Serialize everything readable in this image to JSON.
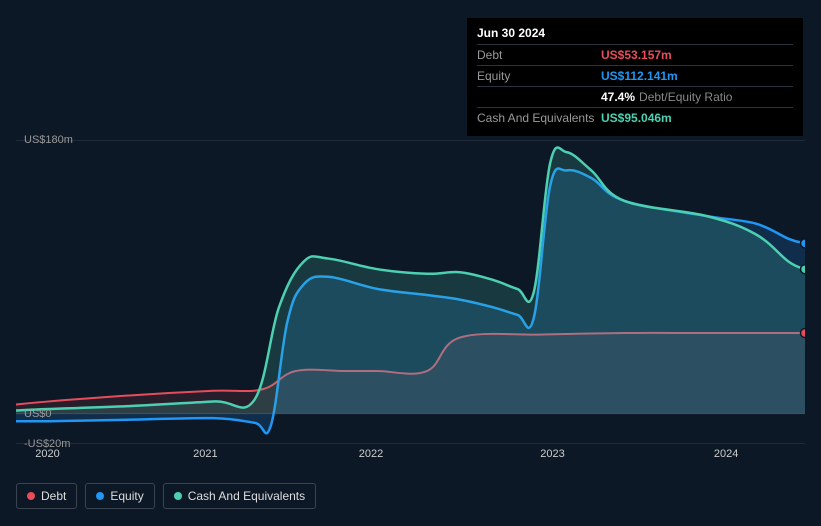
{
  "tooltip": {
    "date": "Jun 30 2024",
    "debt_label": "Debt",
    "debt_value": "US$53.157m",
    "equity_label": "Equity",
    "equity_value": "US$112.141m",
    "ratio_pct": "47.4%",
    "ratio_label": "Debt/Equity Ratio",
    "cash_label": "Cash And Equivalents",
    "cash_value": "US$95.046m"
  },
  "chart": {
    "type": "area",
    "background_color": "#0d1826",
    "grid_color": "#333d4a",
    "y_ticks": [
      {
        "pos": 0,
        "label": "US$180m"
      },
      {
        "pos": 0.9,
        "label": "US$0"
      },
      {
        "pos": 1.0,
        "label": "-US$20m"
      }
    ],
    "x_ticks": [
      {
        "pos": 0.04,
        "label": "2020"
      },
      {
        "pos": 0.24,
        "label": "2021"
      },
      {
        "pos": 0.45,
        "label": "2022"
      },
      {
        "pos": 0.68,
        "label": "2023"
      },
      {
        "pos": 0.9,
        "label": "2024"
      }
    ],
    "y_domain": [
      -20,
      180
    ],
    "x_domain": [
      2019.8,
      2024.6
    ],
    "series": {
      "debt": {
        "label": "Debt",
        "color": "#e74c5b",
        "fill": "rgba(231,76,91,0.12)",
        "stroke_width": 2,
        "data": [
          [
            2019.8,
            6
          ],
          [
            2020.0,
            8
          ],
          [
            2020.5,
            12
          ],
          [
            2021.0,
            15
          ],
          [
            2021.3,
            16
          ],
          [
            2021.5,
            28
          ],
          [
            2021.8,
            28
          ],
          [
            2022.0,
            28
          ],
          [
            2022.3,
            28
          ],
          [
            2022.5,
            50
          ],
          [
            2023.0,
            52
          ],
          [
            2023.5,
            53
          ],
          [
            2024.0,
            53
          ],
          [
            2024.5,
            53
          ],
          [
            2024.6,
            53
          ]
        ]
      },
      "equity": {
        "label": "Equity",
        "color": "#2196f3",
        "fill": "rgba(33,150,243,0.18)",
        "stroke_width": 2.5,
        "data": [
          [
            2019.8,
            -5
          ],
          [
            2020.0,
            -5
          ],
          [
            2020.5,
            -4
          ],
          [
            2021.0,
            -3
          ],
          [
            2021.25,
            -6
          ],
          [
            2021.35,
            -8
          ],
          [
            2021.45,
            60
          ],
          [
            2021.55,
            85
          ],
          [
            2021.7,
            90
          ],
          [
            2022.0,
            82
          ],
          [
            2022.3,
            78
          ],
          [
            2022.5,
            75
          ],
          [
            2022.7,
            70
          ],
          [
            2022.85,
            65
          ],
          [
            2022.95,
            63
          ],
          [
            2023.05,
            150
          ],
          [
            2023.15,
            160
          ],
          [
            2023.3,
            155
          ],
          [
            2023.5,
            140
          ],
          [
            2024.0,
            130
          ],
          [
            2024.3,
            125
          ],
          [
            2024.5,
            115
          ],
          [
            2024.6,
            112
          ]
        ]
      },
      "cash": {
        "label": "Cash And Equivalents",
        "color": "#4dd0b1",
        "fill": "rgba(77,208,177,0.18)",
        "stroke_width": 2.5,
        "data": [
          [
            2019.8,
            2
          ],
          [
            2020.0,
            3
          ],
          [
            2020.5,
            5
          ],
          [
            2021.0,
            8
          ],
          [
            2021.25,
            9
          ],
          [
            2021.4,
            70
          ],
          [
            2021.55,
            100
          ],
          [
            2021.7,
            102
          ],
          [
            2022.0,
            95
          ],
          [
            2022.3,
            92
          ],
          [
            2022.5,
            93
          ],
          [
            2022.7,
            88
          ],
          [
            2022.85,
            82
          ],
          [
            2022.95,
            80
          ],
          [
            2023.05,
            165
          ],
          [
            2023.15,
            172
          ],
          [
            2023.3,
            160
          ],
          [
            2023.5,
            140
          ],
          [
            2024.0,
            130
          ],
          [
            2024.3,
            118
          ],
          [
            2024.5,
            100
          ],
          [
            2024.6,
            95
          ]
        ]
      }
    },
    "marker": {
      "x": 2024.6,
      "points": [
        {
          "series": "debt",
          "y": 53
        },
        {
          "series": "equity",
          "y": 112
        },
        {
          "series": "cash",
          "y": 95
        }
      ]
    }
  },
  "legend": {
    "items": [
      {
        "key": "debt",
        "label": "Debt",
        "color": "#e74c5b"
      },
      {
        "key": "equity",
        "label": "Equity",
        "color": "#2196f3"
      },
      {
        "key": "cash",
        "label": "Cash And Equivalents",
        "color": "#4dd0b1"
      }
    ]
  }
}
